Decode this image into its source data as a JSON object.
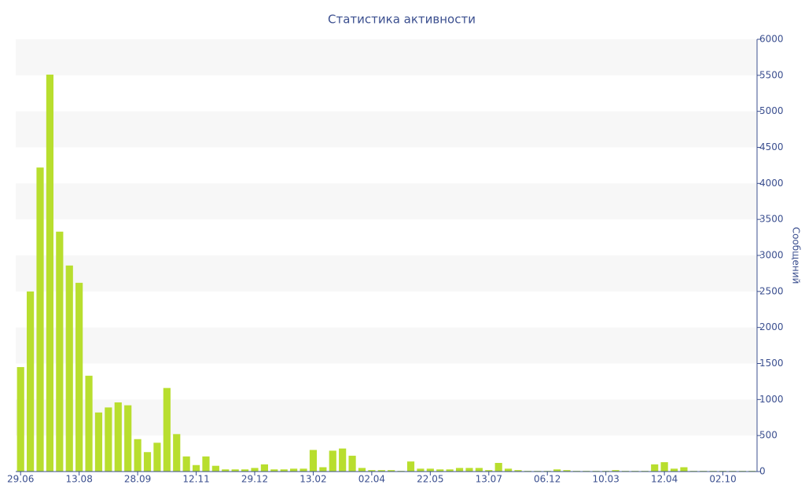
{
  "chart_data": {
    "type": "bar",
    "title": "Статистика активности",
    "y_label": "Сообщений",
    "categories": [
      "29.06",
      null,
      null,
      null,
      null,
      null,
      "13.08",
      null,
      null,
      null,
      null,
      null,
      "28.09",
      null,
      null,
      null,
      null,
      null,
      "12.11",
      null,
      null,
      null,
      null,
      null,
      "29.12",
      null,
      null,
      null,
      null,
      null,
      "13.02",
      null,
      null,
      null,
      null,
      null,
      "02.04",
      null,
      null,
      null,
      null,
      null,
      "22.05",
      null,
      null,
      null,
      null,
      null,
      "13.07",
      null,
      null,
      null,
      null,
      null,
      "06.12",
      null,
      null,
      null,
      null,
      null,
      "10.03",
      null,
      null,
      null,
      null,
      null,
      "12.04",
      null,
      null,
      null,
      null,
      null,
      "02.10",
      null,
      null,
      null
    ],
    "values": [
      1450,
      2500,
      4220,
      5510,
      3330,
      2860,
      2620,
      1330,
      820,
      890,
      960,
      920,
      450,
      270,
      400,
      1160,
      520,
      210,
      90,
      210,
      80,
      30,
      30,
      30,
      50,
      100,
      30,
      30,
      40,
      40,
      300,
      60,
      290,
      320,
      220,
      50,
      20,
      20,
      20,
      10,
      140,
      40,
      40,
      30,
      30,
      50,
      50,
      50,
      20,
      120,
      40,
      20,
      10,
      10,
      10,
      30,
      20,
      10,
      10,
      10,
      10,
      20,
      10,
      10,
      10,
      100,
      130,
      40,
      60,
      10,
      10,
      10,
      10,
      10,
      10,
      10
    ],
    "color": "#b8de2e",
    "ylim": [
      0,
      6000
    ],
    "yticks": [
      0,
      500,
      1000,
      1500,
      2000,
      2500,
      3000,
      3500,
      4000,
      4500,
      5000,
      5500,
      6000
    ],
    "grid": true
  }
}
